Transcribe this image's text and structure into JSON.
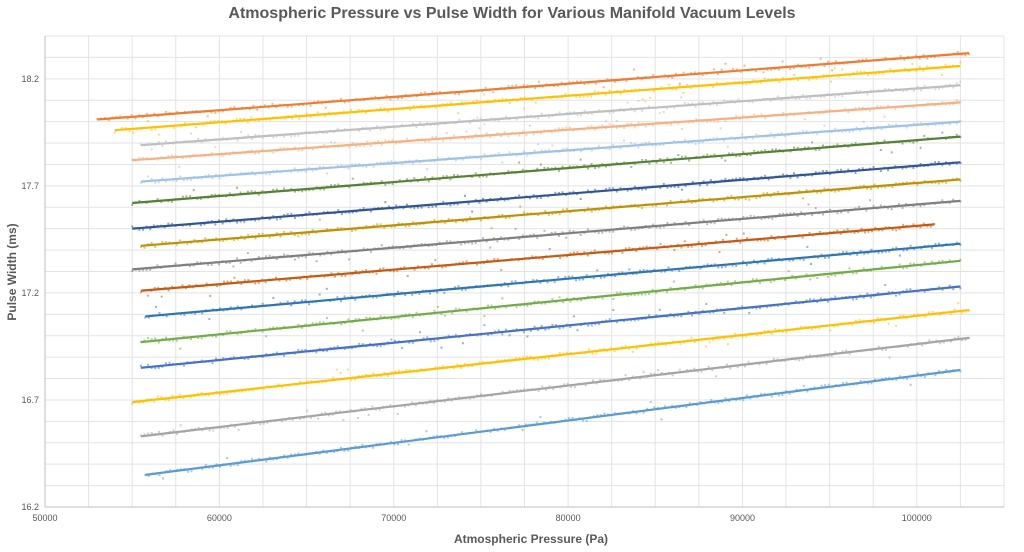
{
  "chart_data": {
    "type": "scatter",
    "title": "Atmospheric Pressure vs Pulse Width for Various Manifold Vacuum Levels",
    "xlabel": "Atmospheric Pressure (Pa)",
    "ylabel": "Pulse Width (ms)",
    "xlim": [
      50000,
      105000
    ],
    "ylim": [
      16.2,
      18.4
    ],
    "xticks": [
      50000,
      60000,
      70000,
      80000,
      90000,
      100000
    ],
    "yticks": [
      16.2,
      16.7,
      17.2,
      17.7,
      18.2
    ],
    "grid": true,
    "legend": "none",
    "series": [
      {
        "color": "#ED7D31",
        "x_range": [
          53000,
          103000
        ],
        "y_start": 18.01,
        "y_end": 18.32
      },
      {
        "color": "#FFC000",
        "x_range": [
          54000,
          102500
        ],
        "y_start": 17.96,
        "y_end": 18.26
      },
      {
        "color": "#BFBFBF",
        "x_range": [
          55500,
          102500
        ],
        "y_start": 17.89,
        "y_end": 18.17
      },
      {
        "color": "#F4B183",
        "x_range": [
          55000,
          102500
        ],
        "y_start": 17.82,
        "y_end": 18.09
      },
      {
        "color": "#9DC3E6",
        "x_range": [
          55500,
          102500
        ],
        "y_start": 17.72,
        "y_end": 18.0
      },
      {
        "color": "#548235",
        "x_range": [
          55000,
          102500
        ],
        "y_start": 17.62,
        "y_end": 17.93
      },
      {
        "color": "#2F5597",
        "x_range": [
          55000,
          102500
        ],
        "y_start": 17.5,
        "y_end": 17.81
      },
      {
        "color": "#BF9000",
        "x_range": [
          55500,
          102500
        ],
        "y_start": 17.42,
        "y_end": 17.73
      },
      {
        "color": "#7F7F7F",
        "x_range": [
          55000,
          102500
        ],
        "y_start": 17.31,
        "y_end": 17.63
      },
      {
        "color": "#C55A11",
        "x_range": [
          55500,
          101000
        ],
        "y_start": 17.21,
        "y_end": 17.52
      },
      {
        "color": "#2E75B6",
        "x_range": [
          55750,
          102500
        ],
        "y_start": 17.09,
        "y_end": 17.43
      },
      {
        "color": "#70AD47",
        "x_range": [
          55500,
          102500
        ],
        "y_start": 16.97,
        "y_end": 17.35
      },
      {
        "color": "#4472C4",
        "x_range": [
          55500,
          102500
        ],
        "y_start": 16.85,
        "y_end": 17.23
      },
      {
        "color": "#FFC000",
        "x_range": [
          55000,
          103000
        ],
        "y_start": 16.69,
        "y_end": 17.12
      },
      {
        "color": "#A5A5A5",
        "x_range": [
          55500,
          103000
        ],
        "y_start": 16.53,
        "y_end": 16.99
      },
      {
        "color": "#5B9BD5",
        "x_range": [
          55750,
          102500
        ],
        "y_start": 16.35,
        "y_end": 16.84
      }
    ]
  }
}
